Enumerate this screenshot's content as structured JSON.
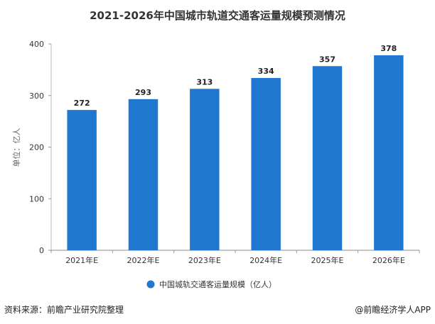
{
  "chart_data": {
    "type": "bar",
    "title": "2021-2026年中国城市轨道交通客运量规模预测情况",
    "xlabel": "",
    "ylabel": "单位：亿人",
    "categories": [
      "2021年E",
      "2022年E",
      "2023年E",
      "2024年E",
      "2025年E",
      "2026年E"
    ],
    "series": [
      {
        "name": "中国城轨交通客运量规模（亿人）",
        "values": [
          272,
          293,
          313,
          334,
          357,
          378
        ],
        "color": "#1f77d0"
      }
    ],
    "yticks": [
      0,
      100,
      200,
      300,
      400
    ],
    "ylim": [
      0,
      400
    ],
    "grid": false,
    "legend": "bottom-center"
  },
  "footer": {
    "source": "资料来源：前瞻产业研究院整理",
    "brand": "@前瞻经济学人APP"
  },
  "colors": {
    "bar": "#1f77d0",
    "axis": "#888888",
    "text": "#333333"
  }
}
